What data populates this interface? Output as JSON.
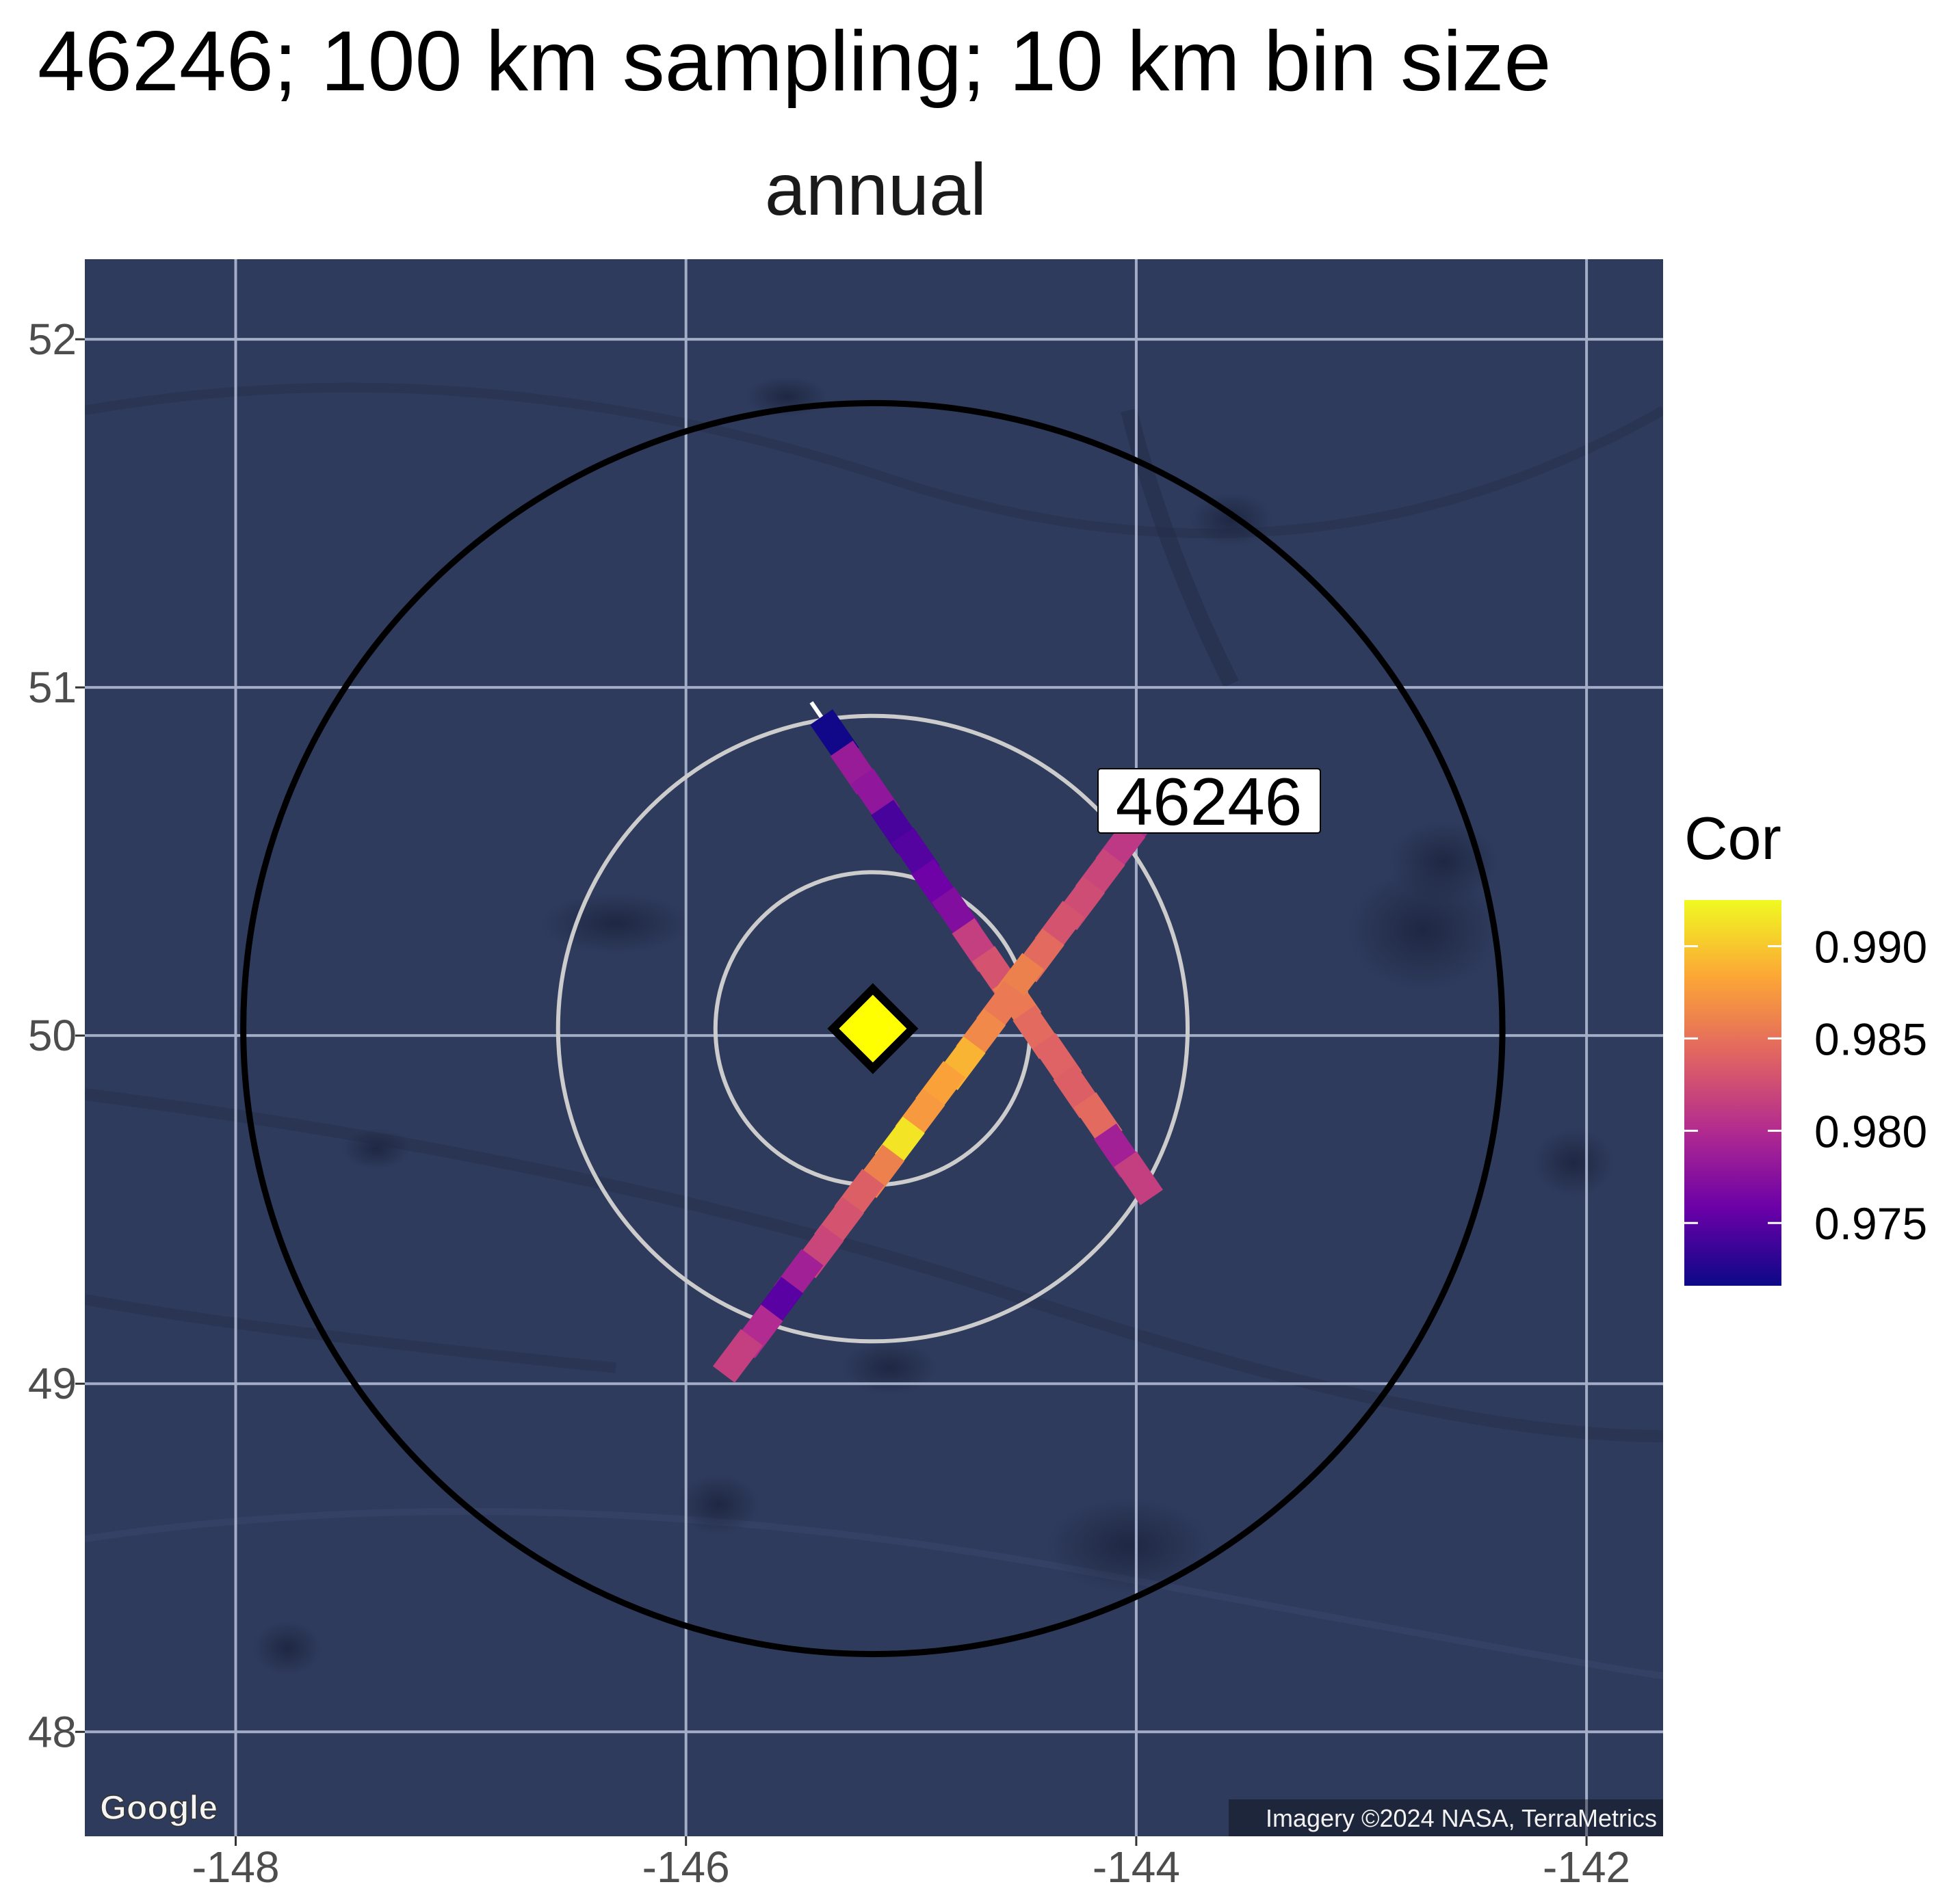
{
  "title": "46246; 100 km sampling; 10 km bin size",
  "subtitle": "annual",
  "map": {
    "lon_range": [
      -148.67,
      -141.66
    ],
    "lat_range": [
      47.7,
      52.23
    ],
    "x_ticks": [
      -148,
      -146,
      -144,
      -142
    ],
    "x_tick_labels": [
      "-148",
      "-146",
      "-144",
      "-142"
    ],
    "y_ticks": [
      52,
      51,
      50,
      49,
      48
    ],
    "y_tick_labels": [
      "52",
      "51",
      "50",
      "49",
      "48"
    ],
    "background_color": "#2f3b5d",
    "grid_color": "#a4adc8",
    "attribution": "Imagery ©2024 NASA, TerraMetrics",
    "logo_text": "Google"
  },
  "station": {
    "id": "46246",
    "lon": -145.17,
    "lat": 50.02,
    "marker_color": "#ffff00",
    "ring_radii_km": [
      50,
      100,
      200
    ],
    "ring_colors": [
      "#cccccc",
      "#cccccc",
      "#000000"
    ]
  },
  "legend": {
    "title": "Cor",
    "tick_values": [
      0.99,
      0.985,
      0.98,
      0.975
    ],
    "tick_labels": [
      "0.990",
      "0.985",
      "0.980",
      "0.975"
    ],
    "range": [
      0.9716,
      0.9925
    ],
    "palette": [
      "#0d0887",
      "#6a00a8",
      "#b12a90",
      "#e16462",
      "#fca636",
      "#f0f921"
    ]
  },
  "chart_data": {
    "type": "map",
    "tracks": [
      {
        "name": "",
        "bins": [
          {
            "lon": -145.34,
            "lat": 50.86,
            "cor": 0.9718
          },
          {
            "lon": -145.25,
            "lat": 50.77,
            "cor": 0.9785
          },
          {
            "lon": -145.16,
            "lat": 50.69,
            "cor": 0.978
          },
          {
            "lon": -145.07,
            "lat": 50.6,
            "cor": 0.9742
          },
          {
            "lon": -144.98,
            "lat": 50.52,
            "cor": 0.9748
          },
          {
            "lon": -144.89,
            "lat": 50.43,
            "cor": 0.976
          },
          {
            "lon": -144.8,
            "lat": 50.35,
            "cor": 0.9772
          },
          {
            "lon": -144.71,
            "lat": 50.26,
            "cor": 0.9815
          },
          {
            "lon": -144.62,
            "lat": 50.18,
            "cor": 0.983
          },
          {
            "lon": -144.53,
            "lat": 50.1,
            "cor": 0.9855
          },
          {
            "lon": -144.44,
            "lat": 50.01,
            "cor": 0.9845
          },
          {
            "lon": -144.35,
            "lat": 49.93,
            "cor": 0.984
          },
          {
            "lon": -144.26,
            "lat": 49.84,
            "cor": 0.9838
          },
          {
            "lon": -144.17,
            "lat": 49.76,
            "cor": 0.9845
          },
          {
            "lon": -144.08,
            "lat": 49.67,
            "cor": 0.979
          },
          {
            "lon": -143.99,
            "lat": 49.59,
            "cor": 0.9815
          }
        ]
      },
      {
        "name": "",
        "bins": [
          {
            "lon": -143.98,
            "lat": 50.62,
            "cor": 0.98
          },
          {
            "lon": -144.07,
            "lat": 50.54,
            "cor": 0.981
          },
          {
            "lon": -144.16,
            "lat": 50.46,
            "cor": 0.982
          },
          {
            "lon": -144.25,
            "lat": 50.38,
            "cor": 0.9825
          },
          {
            "lon": -144.34,
            "lat": 50.31,
            "cor": 0.983
          },
          {
            "lon": -144.43,
            "lat": 50.23,
            "cor": 0.9845
          },
          {
            "lon": -144.52,
            "lat": 50.16,
            "cor": 0.986
          },
          {
            "lon": -144.6,
            "lat": 50.08,
            "cor": 0.9855
          },
          {
            "lon": -144.69,
            "lat": 50.0,
            "cor": 0.9865
          },
          {
            "lon": -144.78,
            "lat": 49.92,
            "cor": 0.989
          },
          {
            "lon": -144.87,
            "lat": 49.85,
            "cor": 0.988
          },
          {
            "lon": -144.96,
            "lat": 49.77,
            "cor": 0.9875
          },
          {
            "lon": -145.05,
            "lat": 49.69,
            "cor": 0.9915
          },
          {
            "lon": -145.14,
            "lat": 49.61,
            "cor": 0.986
          },
          {
            "lon": -145.23,
            "lat": 49.54,
            "cor": 0.9838
          },
          {
            "lon": -145.32,
            "lat": 49.46,
            "cor": 0.983
          },
          {
            "lon": -145.41,
            "lat": 49.38,
            "cor": 0.982
          },
          {
            "lon": -145.5,
            "lat": 49.31,
            "cor": 0.979
          },
          {
            "lon": -145.59,
            "lat": 49.23,
            "cor": 0.975
          },
          {
            "lon": -145.68,
            "lat": 49.15,
            "cor": 0.98
          },
          {
            "lon": -145.77,
            "lat": 49.08,
            "cor": 0.9815
          }
        ]
      }
    ]
  }
}
